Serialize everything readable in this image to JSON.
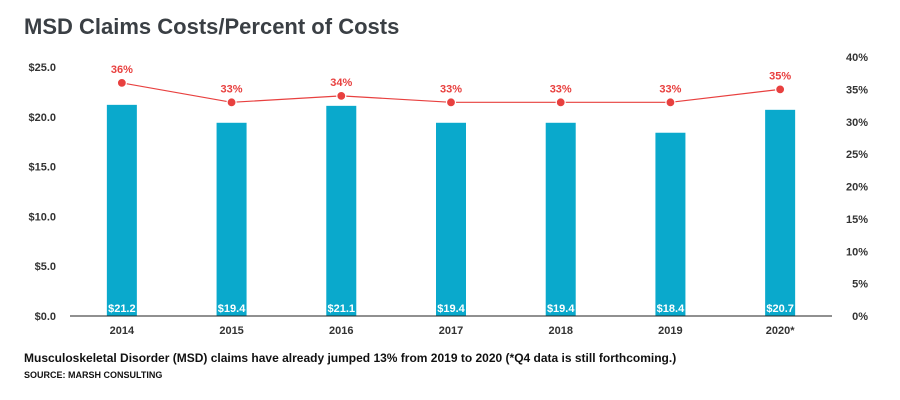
{
  "title": "MSD Claims Costs/Percent of Costs",
  "caption": "Musculoskeletal Disorder (MSD) claims have already jumped 13% from 2019 to 2020 (*Q4 data is still forthcoming.)",
  "source": "SOURCE: MARSH CONSULTING",
  "colors": {
    "bar": "#0aa9cc",
    "line": "#e8403f"
  },
  "chart_data": {
    "type": "bar",
    "categories": [
      "2014",
      "2015",
      "2016",
      "2017",
      "2018",
      "2019",
      "2020*"
    ],
    "series": [
      {
        "type": "bar",
        "axis": "left",
        "values": [
          21.2,
          19.4,
          21.1,
          19.4,
          19.4,
          18.4,
          20.7
        ],
        "data_labels": [
          "$21.2",
          "$19.4",
          "$21.1",
          "$19.4",
          "$19.4",
          "$18.4",
          "$20.7"
        ]
      },
      {
        "type": "line",
        "axis": "right",
        "values": [
          36,
          33,
          34,
          33,
          33,
          33,
          35
        ],
        "data_labels": [
          "36%",
          "33%",
          "34%",
          "33%",
          "33%",
          "33%",
          "35%"
        ]
      }
    ],
    "y_left": {
      "lim": [
        0,
        25
      ],
      "ticks": [
        "$0.0",
        "$5.0",
        "$10.0",
        "$15.0",
        "$20.0",
        "$25.0"
      ]
    },
    "y_right": {
      "lim": [
        0,
        40
      ],
      "ticks": [
        "0%",
        "5%",
        "10%",
        "15%",
        "20%",
        "25%",
        "30%",
        "35%",
        "40%"
      ]
    },
    "grid": false
  }
}
